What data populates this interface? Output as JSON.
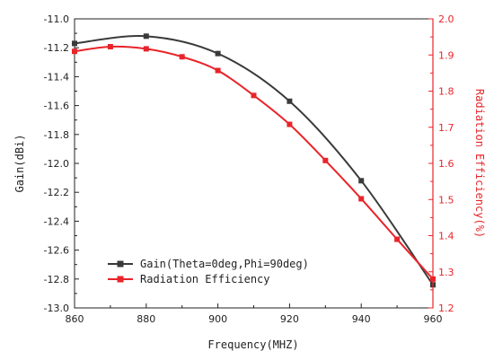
{
  "chart_data": {
    "type": "line",
    "xlabel": "Frequency(MHZ)",
    "ylabel": "Gain(dBi)",
    "y2label": "Radiation Efficiency(%)",
    "xlim": [
      860,
      960
    ],
    "ylim": [
      -13.0,
      -11.0
    ],
    "y2lim": [
      1.2,
      2.0
    ],
    "x_ticks": [
      "860",
      "880",
      "900",
      "920",
      "940",
      "960"
    ],
    "y_ticks": [
      "-11.0",
      "-11.2",
      "-11.4",
      "-11.6",
      "-11.8",
      "-12.0",
      "-12.2",
      "-12.4",
      "-12.6",
      "-12.8",
      "-13.0"
    ],
    "y2_ticks": [
      "2.0",
      "1.9",
      "1.8",
      "1.7",
      "1.6",
      "1.5",
      "1.4",
      "1.3",
      "1.2"
    ],
    "legend_position": "bottom-left",
    "series": [
      {
        "name": "Gain(Theta=0deg,Phi=90deg)",
        "axis": "left",
        "color": "#3a3a3a",
        "marker": "square",
        "x": [
          860,
          880,
          900,
          920,
          940,
          960
        ],
        "y": [
          -11.17,
          -11.12,
          -11.24,
          -11.57,
          -12.12,
          -12.84
        ]
      },
      {
        "name": "Radiation Efficiency",
        "axis": "right",
        "color": "#e8242a",
        "marker": "square",
        "x": [
          860,
          870,
          880,
          890,
          900,
          910,
          920,
          930,
          940,
          950,
          960
        ],
        "y": [
          1.91,
          1.923,
          1.917,
          1.895,
          1.857,
          1.788,
          1.708,
          1.608,
          1.502,
          1.39,
          1.28
        ]
      }
    ]
  }
}
